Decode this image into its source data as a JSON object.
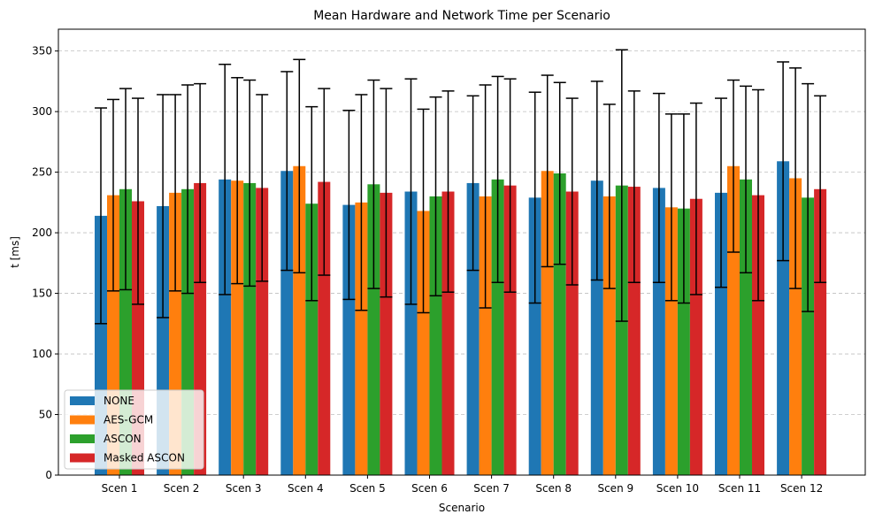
{
  "chart_data": {
    "type": "bar",
    "title": "Mean Hardware and Network Time per Scenario",
    "xlabel": "Scenario",
    "ylabel": "t [ms]",
    "ylim": [
      0,
      368
    ],
    "yticks": [
      0,
      50,
      100,
      150,
      200,
      250,
      300,
      350
    ],
    "grid": "y-dashed",
    "legend_position": "lower-left",
    "categories": [
      "Scen 1",
      "Scen 2",
      "Scen 3",
      "Scen 4",
      "Scen 5",
      "Scen 6",
      "Scen 7",
      "Scen 8",
      "Scen 9",
      "Scen 10",
      "Scen 11",
      "Scen 12"
    ],
    "series": [
      {
        "name": "NONE",
        "color": "#1f77b4",
        "values": [
          214,
          222,
          244,
          251,
          223,
          234,
          241,
          229,
          243,
          237,
          233,
          259
        ],
        "error": [
          89,
          92,
          95,
          82,
          78,
          93,
          72,
          87,
          82,
          78,
          78,
          82
        ]
      },
      {
        "name": "AES-GCM",
        "color": "#ff7f0e",
        "values": [
          231,
          233,
          243,
          255,
          225,
          218,
          230,
          251,
          230,
          221,
          255,
          245
        ],
        "error": [
          79,
          81,
          85,
          88,
          89,
          84,
          92,
          79,
          76,
          77,
          71,
          91
        ]
      },
      {
        "name": "ASCON",
        "color": "#2ca02c",
        "values": [
          236,
          236,
          241,
          224,
          240,
          230,
          244,
          249,
          239,
          220,
          244,
          229
        ],
        "error": [
          83,
          86,
          85,
          80,
          86,
          82,
          85,
          75,
          112,
          78,
          77,
          94
        ]
      },
      {
        "name": "Masked ASCON",
        "color": "#d62728",
        "values": [
          226,
          241,
          237,
          242,
          233,
          234,
          239,
          234,
          238,
          228,
          231,
          236
        ],
        "error": [
          85,
          82,
          77,
          77,
          86,
          83,
          88,
          77,
          79,
          79,
          87,
          77
        ]
      }
    ]
  }
}
